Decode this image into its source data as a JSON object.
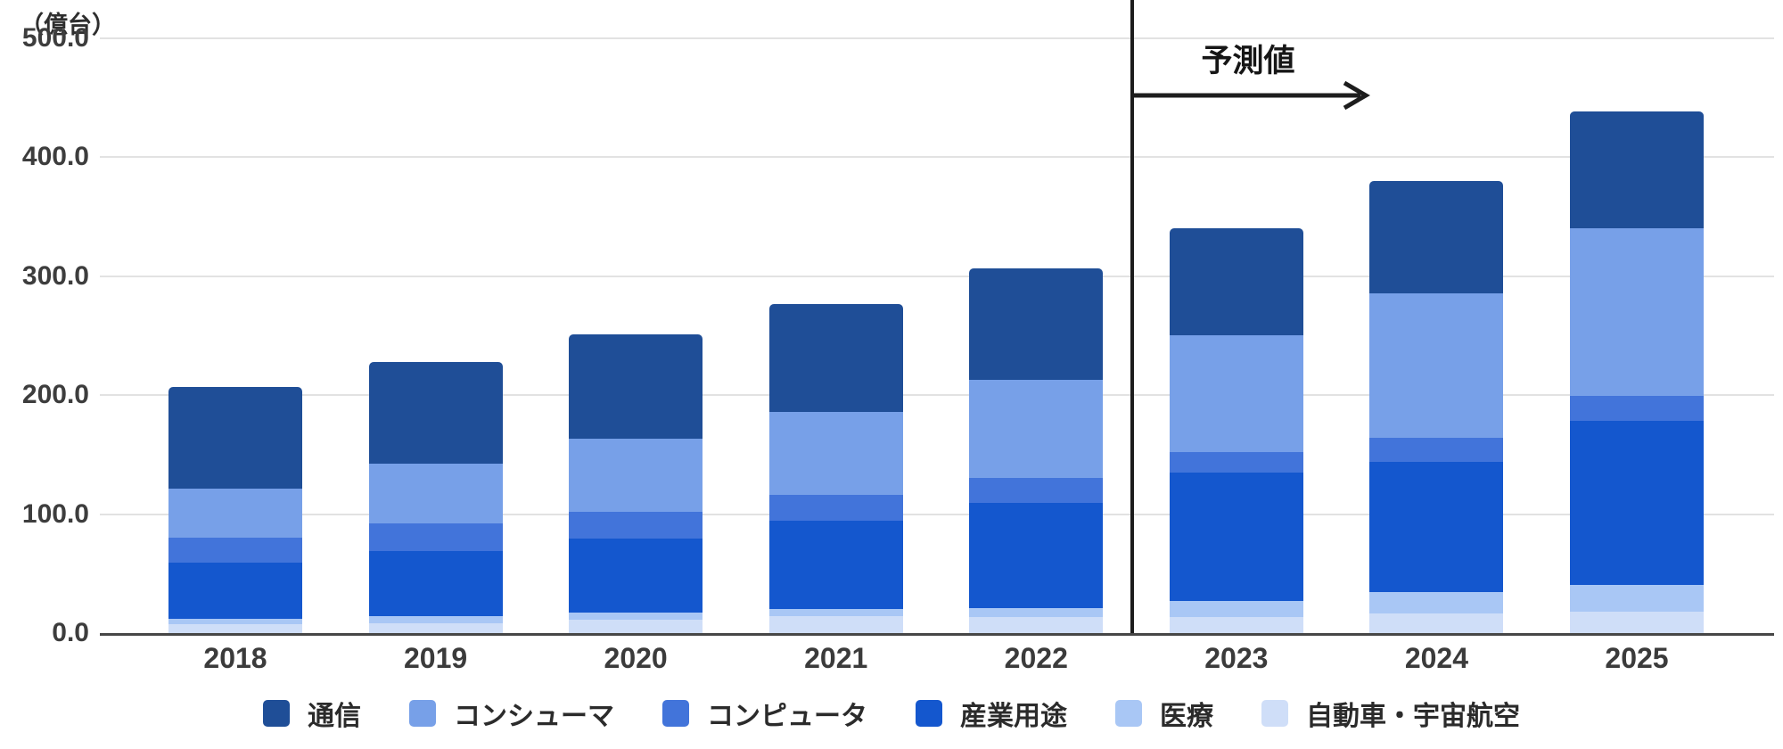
{
  "chart_data": {
    "type": "bar",
    "stacked": true,
    "unit_label": "（億台）",
    "categories": [
      "2018",
      "2019",
      "2020",
      "2021",
      "2022",
      "2023",
      "2024",
      "2025"
    ],
    "series": [
      {
        "name": "通信",
        "color": "#1f4e97",
        "values": [
          86,
          86,
          88,
          90,
          93,
          90,
          95,
          98
        ]
      },
      {
        "name": "コンシューマ",
        "color": "#77a0e8",
        "values": [
          41,
          50,
          61,
          70,
          83,
          98,
          121,
          141
        ]
      },
      {
        "name": "コンピュータ",
        "color": "#4274da",
        "values": [
          21,
          23,
          23,
          22,
          21,
          17,
          20,
          21
        ]
      },
      {
        "name": "産業用途",
        "color": "#1457ce",
        "values": [
          47,
          55,
          62,
          74,
          88,
          108,
          110,
          138
        ]
      },
      {
        "name": "医療",
        "color": "#a9c7f5",
        "values": [
          5,
          6,
          6,
          6,
          8,
          14,
          18,
          22
        ]
      },
      {
        "name": "自動車・宇宙航空",
        "color": "#cfdef8",
        "values": [
          8,
          9,
          12,
          15,
          14,
          14,
          17,
          19
        ]
      }
    ],
    "totals": [
      208,
      229,
      252,
      277,
      307,
      341,
      381,
      439
    ],
    "ylim": [
      0,
      500
    ],
    "yticks": [
      {
        "label": "500.0",
        "value": 500
      },
      {
        "label": "400.0",
        "value": 400
      },
      {
        "label": "300.0",
        "value": 300
      },
      {
        "label": "200.0",
        "value": 200
      },
      {
        "label": "100.0",
        "value": 100
      },
      {
        "label": "0.0",
        "value": 0
      }
    ],
    "grid": true,
    "legend_position": "bottom",
    "annotation": {
      "label": "予測値",
      "divider_between": [
        "2022",
        "2023"
      ],
      "arrow_direction": "right"
    }
  }
}
